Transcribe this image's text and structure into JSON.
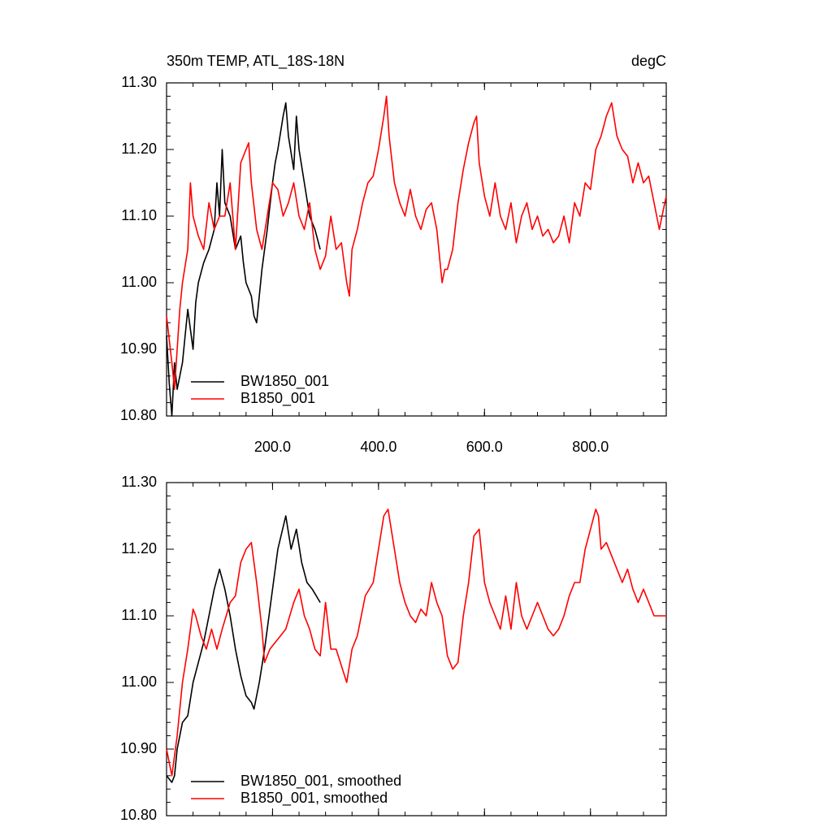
{
  "chart_data": [
    {
      "type": "line",
      "title": "350m TEMP, ATL_18S-18N",
      "units": "degC",
      "xlim": [
        0,
        943
      ],
      "ylim": [
        10.8,
        11.3
      ],
      "xticks": [
        {
          "value": 200,
          "label": "200.0"
        },
        {
          "value": 400,
          "label": "400.0"
        },
        {
          "value": 600,
          "label": "600.0"
        },
        {
          "value": 800,
          "label": "800.0"
        }
      ],
      "show_xtick_labels": true,
      "yticks": [
        {
          "value": 10.8,
          "label": "10.80"
        },
        {
          "value": 10.9,
          "label": "10.90"
        },
        {
          "value": 11.0,
          "label": "11.00"
        },
        {
          "value": 11.1,
          "label": "11.10"
        },
        {
          "value": 11.2,
          "label": "11.20"
        },
        {
          "value": 11.3,
          "label": "11.30"
        }
      ],
      "legend": "lower left",
      "series": [
        {
          "name": "BW1850_001",
          "color": "#000000",
          "x": [
            0,
            5,
            10,
            15,
            20,
            30,
            40,
            45,
            50,
            55,
            60,
            70,
            80,
            90,
            95,
            100,
            105,
            110,
            120,
            130,
            140,
            145,
            150,
            160,
            165,
            170,
            175,
            180,
            190,
            200,
            205,
            210,
            220,
            225,
            230,
            240,
            245,
            250,
            260,
            270,
            280,
            290
          ],
          "values": [
            10.92,
            10.85,
            10.8,
            10.88,
            10.84,
            10.88,
            10.96,
            10.93,
            10.9,
            10.97,
            11.0,
            11.03,
            11.05,
            11.08,
            11.15,
            11.1,
            11.2,
            11.12,
            11.1,
            11.05,
            11.07,
            11.03,
            11.0,
            10.98,
            10.95,
            10.94,
            10.98,
            11.02,
            11.08,
            11.15,
            11.18,
            11.2,
            11.25,
            11.27,
            11.22,
            11.17,
            11.25,
            11.2,
            11.15,
            11.1,
            11.08,
            11.05
          ]
        },
        {
          "name": "B1850_001",
          "color": "#ff0000",
          "x": [
            0,
            10,
            15,
            20,
            25,
            30,
            40,
            45,
            50,
            60,
            70,
            80,
            90,
            100,
            110,
            120,
            130,
            140,
            150,
            155,
            160,
            170,
            180,
            190,
            200,
            210,
            220,
            230,
            240,
            250,
            260,
            270,
            280,
            290,
            300,
            310,
            320,
            330,
            340,
            345,
            350,
            360,
            370,
            380,
            390,
            400,
            410,
            415,
            420,
            430,
            440,
            450,
            460,
            470,
            480,
            490,
            500,
            510,
            520,
            525,
            530,
            540,
            550,
            560,
            570,
            580,
            585,
            590,
            600,
            610,
            620,
            630,
            640,
            650,
            660,
            670,
            680,
            690,
            700,
            710,
            720,
            730,
            740,
            750,
            760,
            770,
            780,
            790,
            800,
            810,
            820,
            830,
            840,
            850,
            860,
            870,
            880,
            890,
            900,
            910,
            920,
            930,
            935,
            943
          ],
          "values": [
            10.95,
            10.88,
            10.84,
            10.9,
            10.96,
            11.0,
            11.05,
            11.15,
            11.1,
            11.07,
            11.05,
            11.12,
            11.08,
            11.1,
            11.1,
            11.15,
            11.05,
            11.18,
            11.2,
            11.21,
            11.15,
            11.08,
            11.05,
            11.1,
            11.15,
            11.14,
            11.1,
            11.12,
            11.15,
            11.1,
            11.08,
            11.12,
            11.05,
            11.02,
            11.04,
            11.1,
            11.05,
            11.06,
            11.0,
            10.98,
            11.05,
            11.08,
            11.12,
            11.15,
            11.16,
            11.2,
            11.25,
            11.28,
            11.22,
            11.15,
            11.12,
            11.1,
            11.14,
            11.1,
            11.08,
            11.11,
            11.12,
            11.08,
            11.0,
            11.02,
            11.02,
            11.05,
            11.12,
            11.17,
            11.21,
            11.24,
            11.25,
            11.18,
            11.13,
            11.1,
            11.15,
            11.1,
            11.08,
            11.12,
            11.06,
            11.1,
            11.12,
            11.08,
            11.1,
            11.07,
            11.08,
            11.06,
            11.07,
            11.1,
            11.06,
            11.12,
            11.1,
            11.15,
            11.14,
            11.2,
            11.22,
            11.25,
            11.27,
            11.22,
            11.2,
            11.19,
            11.15,
            11.18,
            11.15,
            11.16,
            11.12,
            11.08,
            11.1,
            11.13
          ]
        }
      ]
    },
    {
      "type": "line",
      "xlim": [
        0,
        943
      ],
      "ylim": [
        10.8,
        11.3
      ],
      "xticks": [
        200,
        400,
        600,
        800
      ],
      "show_xtick_labels": false,
      "yticks": [
        {
          "value": 10.8,
          "label": "10.80"
        },
        {
          "value": 10.9,
          "label": "10.90"
        },
        {
          "value": 11.0,
          "label": "11.00"
        },
        {
          "value": 11.1,
          "label": "11.10"
        },
        {
          "value": 11.2,
          "label": "11.20"
        },
        {
          "value": 11.3,
          "label": "11.30"
        }
      ],
      "legend": "lower left",
      "series": [
        {
          "name": "BW1850_001, smoothed",
          "color": "#000000",
          "x": [
            0,
            10,
            15,
            20,
            30,
            40,
            50,
            60,
            70,
            80,
            90,
            100,
            110,
            120,
            130,
            140,
            150,
            160,
            165,
            175,
            185,
            200,
            210,
            225,
            235,
            245,
            255,
            265,
            275,
            290
          ],
          "values": [
            10.86,
            10.85,
            10.86,
            10.9,
            10.94,
            10.95,
            11.0,
            11.03,
            11.06,
            11.1,
            11.14,
            11.17,
            11.14,
            11.1,
            11.05,
            11.01,
            10.98,
            10.97,
            10.96,
            11.0,
            11.05,
            11.14,
            11.2,
            11.25,
            11.2,
            11.23,
            11.18,
            11.15,
            11.14,
            11.12
          ]
        },
        {
          "name": "B1850_001, smoothed",
          "color": "#ff0000",
          "x": [
            0,
            10,
            20,
            30,
            40,
            50,
            55,
            65,
            75,
            85,
            95,
            105,
            120,
            130,
            140,
            150,
            160,
            170,
            180,
            185,
            195,
            205,
            215,
            225,
            240,
            250,
            260,
            270,
            280,
            290,
            300,
            310,
            320,
            340,
            350,
            360,
            375,
            390,
            400,
            410,
            418,
            430,
            440,
            450,
            460,
            470,
            480,
            490,
            500,
            510,
            520,
            530,
            540,
            550,
            560,
            570,
            580,
            590,
            600,
            610,
            620,
            630,
            640,
            650,
            660,
            670,
            680,
            690,
            700,
            710,
            720,
            730,
            740,
            750,
            760,
            770,
            780,
            790,
            800,
            810,
            815,
            820,
            830,
            840,
            850,
            860,
            870,
            880,
            890,
            900,
            910,
            920,
            935,
            943
          ],
          "values": [
            10.9,
            10.86,
            10.92,
            11.0,
            11.05,
            11.11,
            11.1,
            11.07,
            11.05,
            11.08,
            11.05,
            11.08,
            11.12,
            11.13,
            11.18,
            11.2,
            11.21,
            11.15,
            11.08,
            11.03,
            11.05,
            11.06,
            11.07,
            11.08,
            11.12,
            11.14,
            11.1,
            11.08,
            11.05,
            11.04,
            11.12,
            11.05,
            11.05,
            11.0,
            11.05,
            11.07,
            11.13,
            11.15,
            11.2,
            11.25,
            11.26,
            11.2,
            11.15,
            11.12,
            11.1,
            11.09,
            11.11,
            11.1,
            11.15,
            11.12,
            11.1,
            11.04,
            11.02,
            11.03,
            11.1,
            11.15,
            11.22,
            11.23,
            11.15,
            11.12,
            11.1,
            11.08,
            11.13,
            11.08,
            11.15,
            11.1,
            11.08,
            11.1,
            11.12,
            11.1,
            11.08,
            11.07,
            11.08,
            11.1,
            11.13,
            11.15,
            11.15,
            11.2,
            11.23,
            11.26,
            11.25,
            11.2,
            11.21,
            11.19,
            11.17,
            11.15,
            11.17,
            11.14,
            11.12,
            11.14,
            11.12,
            11.1,
            11.1,
            11.1
          ]
        }
      ]
    }
  ]
}
